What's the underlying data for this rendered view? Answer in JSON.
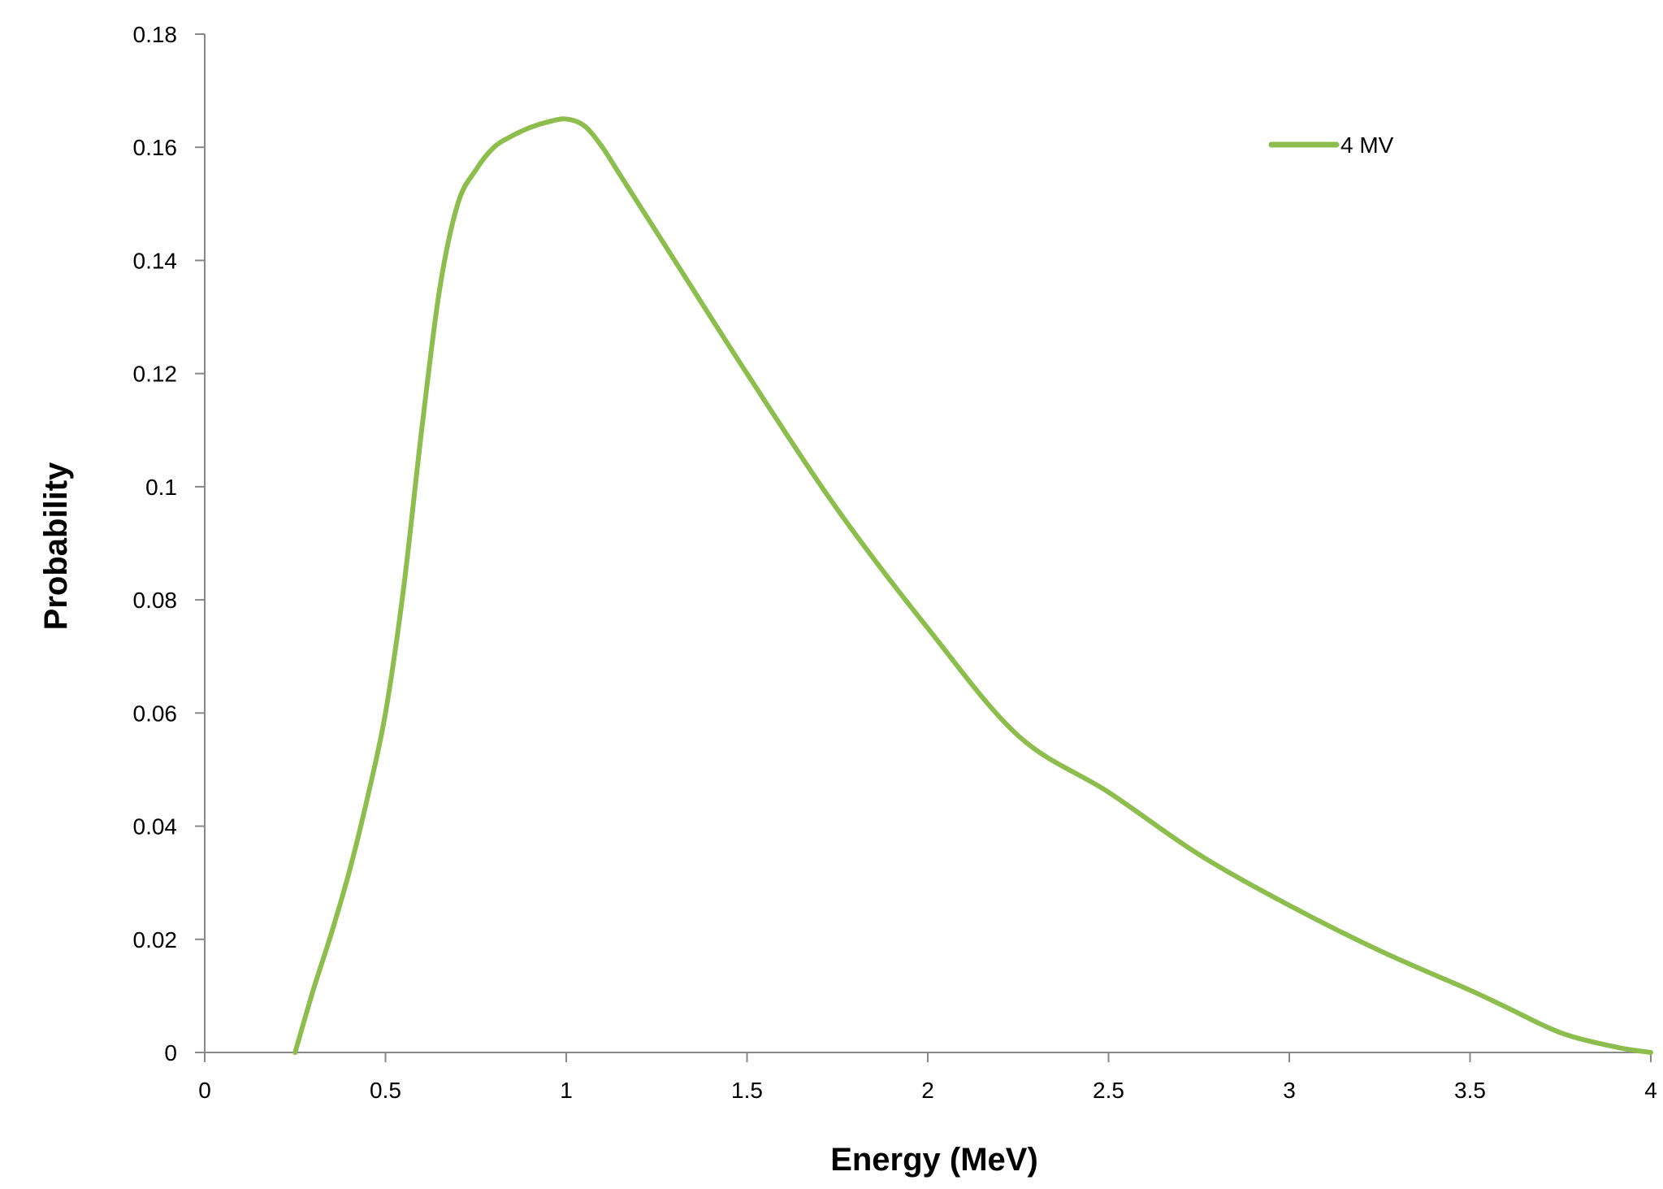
{
  "chart_data": {
    "type": "line",
    "title": "",
    "xlabel": "Energy (MeV)",
    "ylabel": "Probability",
    "xlim": [
      0,
      4
    ],
    "ylim": [
      0,
      0.18
    ],
    "x_ticks": [
      0,
      0.5,
      1,
      1.5,
      2,
      2.5,
      3,
      3.5,
      4
    ],
    "x_tick_labels": [
      "0",
      "0.5",
      "1",
      "1.5",
      "2",
      "2.5",
      "3",
      "3.5",
      "4"
    ],
    "y_ticks": [
      0,
      0.02,
      0.04,
      0.06,
      0.08,
      0.1,
      0.12,
      0.14,
      0.16,
      0.18
    ],
    "y_tick_labels": [
      "0",
      "0.02",
      "0.04",
      "0.06",
      "0.08",
      "0.1",
      "0.12",
      "0.14",
      "0.16",
      "0.18"
    ],
    "grid": false,
    "legend_position": "top-right",
    "series": [
      {
        "name": "4 MV",
        "color": "#8cbd4d",
        "x": [
          0.25,
          0.3,
          0.35,
          0.4,
          0.45,
          0.5,
          0.55,
          0.6,
          0.65,
          0.7,
          0.75,
          0.8,
          0.85,
          0.9,
          0.95,
          1.0,
          1.05,
          1.1,
          1.15,
          1.25,
          1.5,
          1.75,
          2.0,
          2.25,
          2.5,
          2.75,
          3.0,
          3.25,
          3.5,
          3.6,
          3.75,
          3.9,
          4.0
        ],
        "y": [
          0.0,
          0.011,
          0.021,
          0.032,
          0.045,
          0.06,
          0.082,
          0.11,
          0.135,
          0.15,
          0.156,
          0.16,
          0.162,
          0.1635,
          0.1645,
          0.165,
          0.1638,
          0.16,
          0.155,
          0.145,
          0.12,
          0.096,
          0.075,
          0.056,
          0.046,
          0.035,
          0.026,
          0.018,
          0.011,
          0.008,
          0.0035,
          0.001,
          0.0
        ]
      }
    ]
  }
}
